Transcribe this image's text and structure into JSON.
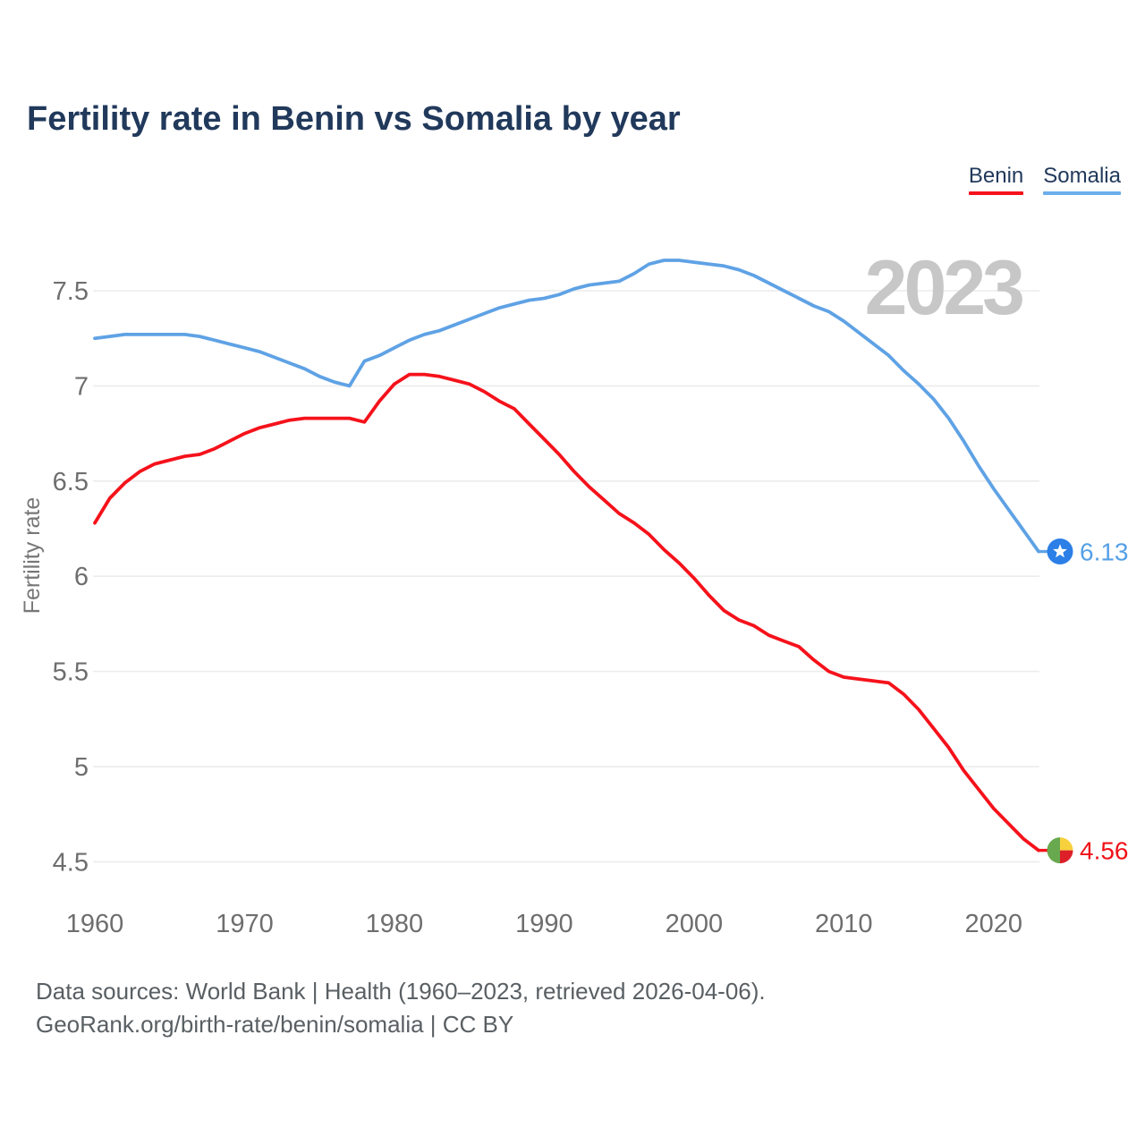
{
  "title": "Fertility rate in Benin vs Somalia by year",
  "watermark": "2023",
  "legend": [
    {
      "label": "Benin",
      "color": "#f5121b"
    },
    {
      "label": "Somalia",
      "color": "#6cadeb"
    }
  ],
  "y_axis": {
    "label": "Fertility rate",
    "tick_labels": [
      "7.5",
      "7",
      "6.5",
      "6",
      "5.5",
      "5",
      "4.5"
    ],
    "tick_values": [
      7.5,
      7,
      6.5,
      6,
      5.5,
      5,
      4.5
    ]
  },
  "x_axis": {
    "tick_labels": [
      "1960",
      "1970",
      "1980",
      "1990",
      "2000",
      "2010",
      "2020"
    ],
    "tick_values": [
      1960,
      1970,
      1980,
      1990,
      2000,
      2010,
      2020
    ]
  },
  "end_labels": [
    {
      "series": "Somalia",
      "value": "6.13",
      "text_color": "#55a0e6",
      "marker": "somalia-flag-circle",
      "marker_colors": {
        "circle": "#2b7fe6",
        "star": "#ffffff"
      }
    },
    {
      "series": "Benin",
      "value": "4.56",
      "text_color": "#ef1118",
      "marker": "benin-flag-circle",
      "marker_colors": {
        "green": "#68a84e",
        "yellow": "#f7d13d",
        "red": "#dc1f28"
      }
    }
  ],
  "footer": {
    "line1": "Data sources: World Bank | Health (1960–2023, retrieved 2026-04-06).",
    "line2": "GeoRank.org/birth-rate/benin/somalia | CC BY"
  },
  "chart_data": {
    "type": "line",
    "title": "Fertility rate in Benin vs Somalia by year",
    "xlabel": "",
    "ylabel": "Fertility rate",
    "xlim": [
      1960,
      2023
    ],
    "ylim": [
      4.3,
      7.8
    ],
    "grid": "horizontal",
    "legend_position": "top-right",
    "x": [
      1960,
      1961,
      1962,
      1963,
      1964,
      1965,
      1966,
      1967,
      1968,
      1969,
      1970,
      1971,
      1972,
      1973,
      1974,
      1975,
      1976,
      1977,
      1978,
      1979,
      1980,
      1981,
      1982,
      1983,
      1984,
      1985,
      1986,
      1987,
      1988,
      1989,
      1990,
      1991,
      1992,
      1993,
      1994,
      1995,
      1996,
      1997,
      1998,
      1999,
      2000,
      2001,
      2002,
      2003,
      2004,
      2005,
      2006,
      2007,
      2008,
      2009,
      2010,
      2011,
      2012,
      2013,
      2014,
      2015,
      2016,
      2017,
      2018,
      2019,
      2020,
      2021,
      2022,
      2023
    ],
    "series": [
      {
        "name": "Benin",
        "color": "#f5121b",
        "values": [
          6.28,
          6.41,
          6.49,
          6.55,
          6.59,
          6.61,
          6.63,
          6.64,
          6.67,
          6.71,
          6.75,
          6.78,
          6.8,
          6.82,
          6.83,
          6.83,
          6.83,
          6.83,
          6.81,
          6.92,
          7.01,
          7.06,
          7.06,
          7.05,
          7.03,
          7.01,
          6.97,
          6.92,
          6.88,
          6.8,
          6.72,
          6.64,
          6.55,
          6.47,
          6.4,
          6.33,
          6.28,
          6.22,
          6.14,
          6.07,
          5.99,
          5.9,
          5.82,
          5.77,
          5.74,
          5.69,
          5.66,
          5.63,
          5.56,
          5.5,
          5.47,
          5.46,
          5.45,
          5.44,
          5.38,
          5.3,
          5.2,
          5.1,
          4.98,
          4.88,
          4.78,
          4.7,
          4.62,
          4.56
        ]
      },
      {
        "name": "Somalia",
        "color": "#5fa2e5",
        "values": [
          7.25,
          7.26,
          7.27,
          7.27,
          7.27,
          7.27,
          7.27,
          7.26,
          7.24,
          7.22,
          7.2,
          7.18,
          7.15,
          7.12,
          7.09,
          7.05,
          7.02,
          7.0,
          7.13,
          7.16,
          7.2,
          7.24,
          7.27,
          7.29,
          7.32,
          7.35,
          7.38,
          7.41,
          7.43,
          7.45,
          7.46,
          7.48,
          7.51,
          7.53,
          7.54,
          7.55,
          7.59,
          7.64,
          7.66,
          7.66,
          7.65,
          7.64,
          7.63,
          7.61,
          7.58,
          7.54,
          7.5,
          7.46,
          7.42,
          7.39,
          7.34,
          7.28,
          7.22,
          7.16,
          7.08,
          7.01,
          6.93,
          6.83,
          6.71,
          6.58,
          6.46,
          6.35,
          6.24,
          6.13
        ]
      }
    ]
  }
}
